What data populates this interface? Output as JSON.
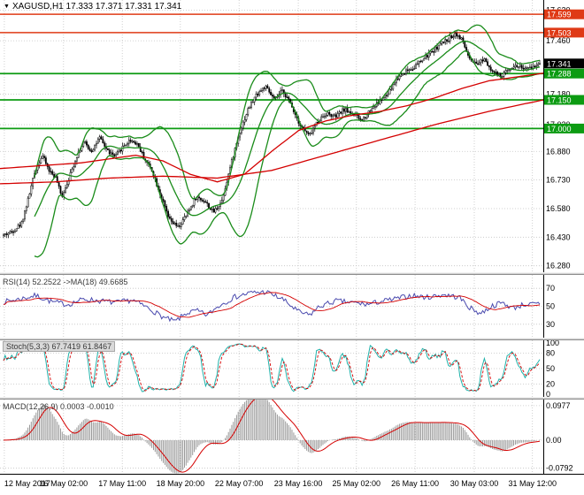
{
  "header": {
    "arrow": "▼",
    "text": "XAGUSD,H1 17.333 17.371 17.331 17.341"
  },
  "indicator_labels": {
    "rsi": "RSI(14) 52.2522  ->MA(18) 49.6685",
    "stoch": "Stoch(5,3,3) 67.7419 61.8467",
    "macd": "MACD(12,26,9) 0.0003 -0.0010"
  },
  "colors": {
    "background": "#ffffff",
    "grid": "#c4c4c4",
    "line_red": "#df3a16",
    "line_green": "#0c9b12",
    "bollinger": "#1a8c1a",
    "ma_red": "#d40000",
    "rsi": "#4a4aae",
    "stoch_main": "#20b2aa",
    "stoch_signal": "#d40000",
    "macd_hist": "#999999",
    "macd_signal": "#d40000",
    "axis_line": "#000000",
    "badge_current": "#000000"
  },
  "time_axis": {
    "labels": [
      {
        "label": "12 May 2017",
        "pos": 0.008
      },
      {
        "label": "16 May 02:00",
        "pos": 0.117
      },
      {
        "label": "17 May 11:00",
        "pos": 0.225
      },
      {
        "label": "18 May 20:00",
        "pos": 0.332
      },
      {
        "label": "22 May 07:00",
        "pos": 0.44
      },
      {
        "label": "23 May 16:00",
        "pos": 0.549
      },
      {
        "label": "25 May 02:00",
        "pos": 0.656
      },
      {
        "label": "26 May 11:00",
        "pos": 0.764
      },
      {
        "label": "30 May 03:00",
        "pos": 0.873
      },
      {
        "label": "31 May 12:00",
        "pos": 0.98
      }
    ]
  },
  "chart_data": [
    {
      "id": "main",
      "type": "candlestick",
      "title": "XAGUSD,H1",
      "ohlc_display": {
        "open": "17.333",
        "high": "17.371",
        "low": "17.331",
        "close": "17.341"
      },
      "current_price": "17.341",
      "y_range": [
        16.26,
        17.66
      ],
      "y_ticks": [
        "17.620",
        "17.460",
        "17.180",
        "17.020",
        "16.880",
        "16.730",
        "16.580",
        "16.430",
        "16.280"
      ],
      "num_candles": 330,
      "horizontal_lines": [
        {
          "price": "17.599",
          "color": "red"
        },
        {
          "price": "17.503",
          "color": "red"
        },
        {
          "price": "17.288",
          "color": "green"
        },
        {
          "price": "17.150",
          "color": "green"
        },
        {
          "price": "17.000",
          "color": "green"
        }
      ],
      "bollinger": {
        "period": 20,
        "deviation": 2
      },
      "price_path": [
        [
          0,
          16.44
        ],
        [
          0.016,
          16.46
        ],
        [
          0.033,
          16.5
        ],
        [
          0.045,
          16.62
        ],
        [
          0.059,
          16.78
        ],
        [
          0.072,
          16.86
        ],
        [
          0.085,
          16.78
        ],
        [
          0.098,
          16.74
        ],
        [
          0.108,
          16.64
        ],
        [
          0.122,
          16.74
        ],
        [
          0.137,
          16.86
        ],
        [
          0.15,
          16.93
        ],
        [
          0.163,
          16.88
        ],
        [
          0.179,
          16.95
        ],
        [
          0.195,
          16.88
        ],
        [
          0.208,
          16.85
        ],
        [
          0.221,
          16.9
        ],
        [
          0.236,
          16.94
        ],
        [
          0.25,
          16.92
        ],
        [
          0.261,
          16.85
        ],
        [
          0.277,
          16.78
        ],
        [
          0.293,
          16.65
        ],
        [
          0.309,
          16.52
        ],
        [
          0.326,
          16.48
        ],
        [
          0.342,
          16.55
        ],
        [
          0.359,
          16.64
        ],
        [
          0.375,
          16.62
        ],
        [
          0.391,
          16.56
        ],
        [
          0.407,
          16.62
        ],
        [
          0.423,
          16.8
        ],
        [
          0.44,
          16.98
        ],
        [
          0.456,
          17.1
        ],
        [
          0.472,
          17.18
        ],
        [
          0.488,
          17.22
        ],
        [
          0.505,
          17.15
        ],
        [
          0.521,
          17.2
        ],
        [
          0.537,
          17.12
        ],
        [
          0.553,
          17.02
        ],
        [
          0.57,
          16.96
        ],
        [
          0.586,
          17.04
        ],
        [
          0.602,
          17.08
        ],
        [
          0.619,
          17.06
        ],
        [
          0.635,
          17.1
        ],
        [
          0.651,
          17.08
        ],
        [
          0.668,
          17.04
        ],
        [
          0.684,
          17.1
        ],
        [
          0.7,
          17.14
        ],
        [
          0.717,
          17.18
        ],
        [
          0.733,
          17.26
        ],
        [
          0.749,
          17.3
        ],
        [
          0.765,
          17.32
        ],
        [
          0.781,
          17.36
        ],
        [
          0.798,
          17.4
        ],
        [
          0.814,
          17.44
        ],
        [
          0.83,
          17.47
        ],
        [
          0.843,
          17.5
        ],
        [
          0.856,
          17.46
        ],
        [
          0.869,
          17.36
        ],
        [
          0.882,
          17.33
        ],
        [
          0.896,
          17.37
        ],
        [
          0.912,
          17.3
        ],
        [
          0.928,
          17.27
        ],
        [
          0.944,
          17.32
        ],
        [
          0.96,
          17.33
        ],
        [
          0.976,
          17.31
        ],
        [
          1,
          17.341
        ]
      ],
      "ma_fast": [
        [
          0,
          16.79
        ],
        [
          0.05,
          16.8
        ],
        [
          0.1,
          16.81
        ],
        [
          0.15,
          16.82
        ],
        [
          0.2,
          16.84
        ],
        [
          0.25,
          16.86
        ],
        [
          0.3,
          16.83
        ],
        [
          0.35,
          16.76
        ],
        [
          0.4,
          16.72
        ],
        [
          0.45,
          16.76
        ],
        [
          0.5,
          16.88
        ],
        [
          0.55,
          16.99
        ],
        [
          0.6,
          17.04
        ],
        [
          0.65,
          17.07
        ],
        [
          0.7,
          17.09
        ],
        [
          0.75,
          17.12
        ],
        [
          0.8,
          17.16
        ],
        [
          0.85,
          17.21
        ],
        [
          0.9,
          17.25
        ],
        [
          0.95,
          17.27
        ],
        [
          1,
          17.29
        ]
      ],
      "ma_slow": [
        [
          0,
          16.71
        ],
        [
          0.1,
          16.72
        ],
        [
          0.2,
          16.74
        ],
        [
          0.3,
          16.75
        ],
        [
          0.4,
          16.74
        ],
        [
          0.5,
          16.78
        ],
        [
          0.6,
          16.86
        ],
        [
          0.7,
          16.94
        ],
        [
          0.8,
          17.02
        ],
        [
          0.9,
          17.09
        ],
        [
          1,
          17.15
        ]
      ]
    },
    {
      "id": "rsi",
      "type": "line",
      "label": "RSI(14) 52.2522  ->MA(18) 49.6685",
      "value": 52.2522,
      "ma_period": 18,
      "ma_value": 49.6685,
      "y_ticks": [
        "70",
        "50",
        "30"
      ],
      "levels": [
        70,
        50,
        30
      ],
      "path": [
        [
          0,
          55
        ],
        [
          0.03,
          58
        ],
        [
          0.06,
          62
        ],
        [
          0.09,
          55
        ],
        [
          0.12,
          52
        ],
        [
          0.15,
          58
        ],
        [
          0.18,
          56
        ],
        [
          0.21,
          54
        ],
        [
          0.24,
          57
        ],
        [
          0.27,
          48
        ],
        [
          0.3,
          37
        ],
        [
          0.32,
          33
        ],
        [
          0.34,
          42
        ],
        [
          0.36,
          45
        ],
        [
          0.38,
          40
        ],
        [
          0.4,
          50
        ],
        [
          0.43,
          60
        ],
        [
          0.46,
          65
        ],
        [
          0.49,
          66
        ],
        [
          0.52,
          58
        ],
        [
          0.55,
          44
        ],
        [
          0.57,
          40
        ],
        [
          0.59,
          50
        ],
        [
          0.62,
          56
        ],
        [
          0.65,
          54
        ],
        [
          0.68,
          52
        ],
        [
          0.7,
          55
        ],
        [
          0.73,
          58
        ],
        [
          0.76,
          62
        ],
        [
          0.79,
          60
        ],
        [
          0.82,
          63
        ],
        [
          0.85,
          60
        ],
        [
          0.87,
          48
        ],
        [
          0.89,
          42
        ],
        [
          0.91,
          50
        ],
        [
          0.93,
          54
        ],
        [
          0.95,
          48
        ],
        [
          0.97,
          52
        ],
        [
          1,
          52.25
        ]
      ]
    },
    {
      "id": "stoch",
      "type": "oscillator",
      "label": "Stoch(5,3,3) 67.7419 61.8467",
      "k_value": 67.7419,
      "d_value": 61.8467,
      "params": [
        5,
        3,
        3
      ],
      "y_ticks": [
        "100",
        "80",
        "50",
        "20",
        "0"
      ],
      "levels": [
        80,
        50,
        20
      ]
    },
    {
      "id": "macd",
      "type": "histogram",
      "label": "MACD(12,26,9) 0.0003 -0.0010",
      "macd_value": 0.0003,
      "signal_value": -0.001,
      "params": [
        12,
        26,
        9
      ],
      "y_ticks": [
        "0.0977",
        "0.00",
        "-0.0792"
      ],
      "y_range": [
        -0.095,
        0.115
      ]
    }
  ]
}
